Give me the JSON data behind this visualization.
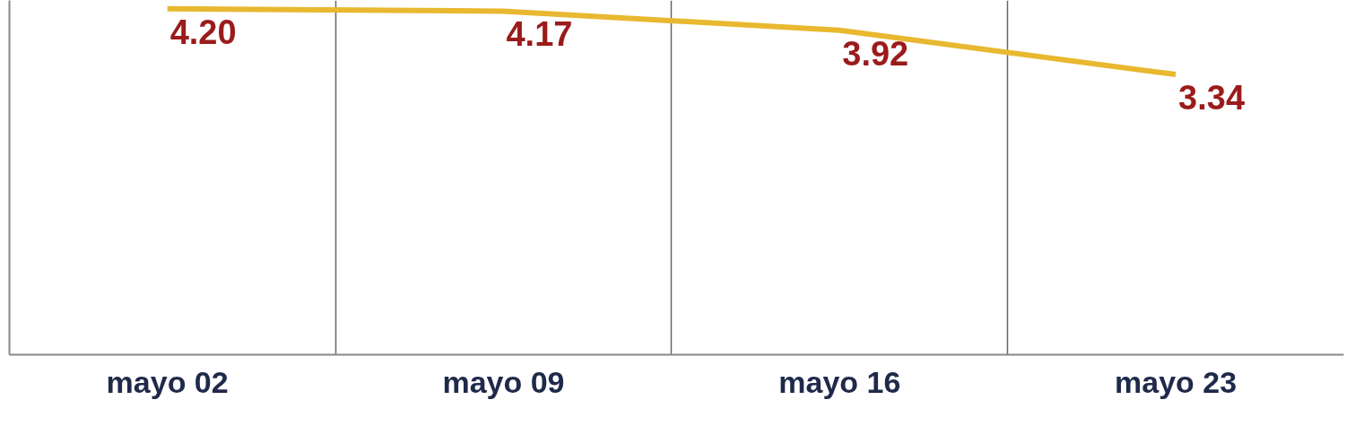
{
  "chart_data": {
    "type": "line",
    "categories": [
      "mayo 02",
      "mayo 09",
      "mayo 16",
      "mayo 23"
    ],
    "series": [
      {
        "color": "#e8b830",
        "values": [
          4.2,
          4.17,
          3.92,
          3.34
        ],
        "value_labels": [
          "4.20",
          "4.17",
          "3.92",
          "3.34"
        ]
      }
    ],
    "ylim": [
      -0.33,
      4.31
    ],
    "grid": "x",
    "tick_labels": "x",
    "marker": "none",
    "line_style": "solid"
  }
}
